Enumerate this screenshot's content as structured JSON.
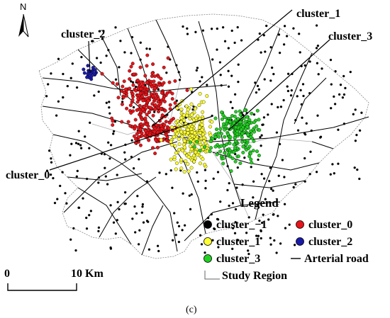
{
  "north_arrow": {
    "label": "N"
  },
  "cluster_labels": [
    {
      "id": "cluster_1",
      "text": "cluster_1"
    },
    {
      "id": "cluster_2",
      "text": "cluster_2"
    },
    {
      "id": "cluster_3",
      "text": "cluster_3"
    },
    {
      "id": "cluster_0",
      "text": "cluster_0"
    }
  ],
  "legend": {
    "title": "Legend",
    "items": [
      {
        "label": "cluster_−1",
        "color": "#000000",
        "marker": "dot"
      },
      {
        "label": "cluster_0",
        "color": "#e8141a",
        "marker": "dot"
      },
      {
        "label": "cluster_1",
        "color": "#ffff33",
        "marker": "dot"
      },
      {
        "label": "cluster_2",
        "color": "#1a1aa8",
        "marker": "dot"
      },
      {
        "label": "cluster_3",
        "color": "#22d022",
        "marker": "dot"
      },
      {
        "label": "Arterial road",
        "color": "#000000",
        "marker": "line"
      },
      {
        "label": "Study Region",
        "color": "#000000",
        "marker": "region"
      }
    ]
  },
  "scale_bar": {
    "start_label": "0",
    "end_label": "10 Km"
  },
  "caption": "(c)",
  "colors": {
    "noise": "#000000",
    "cluster_0": "#e8141a",
    "cluster_1": "#ffff33",
    "cluster_2": "#1a1aa8",
    "cluster_3": "#22d022",
    "road": "#000000",
    "boundary": "#777777"
  }
}
